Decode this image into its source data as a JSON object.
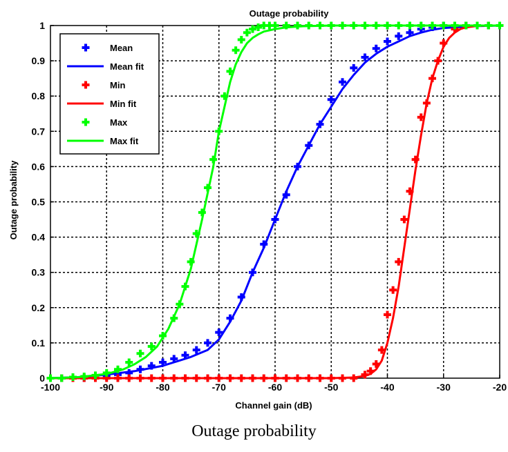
{
  "caption": "Outage probability",
  "chart_data": {
    "type": "line",
    "title": "Outage probability",
    "xlabel": "Channel gain (dB)",
    "ylabel": "Outage probability",
    "xlim": [
      -100,
      -20
    ],
    "ylim": [
      0,
      1
    ],
    "xticks": [
      -100,
      -90,
      -80,
      -70,
      -60,
      -50,
      -40,
      -30,
      -20
    ],
    "yticks": [
      0,
      0.1,
      0.2,
      0.3,
      0.4,
      0.5,
      0.6,
      0.7,
      0.8,
      0.9,
      1
    ],
    "xtick_labels": [
      "-100",
      "-90",
      "-80",
      "-70",
      "-60",
      "-50",
      "-40",
      "-30",
      "-20"
    ],
    "ytick_labels": [
      "0",
      "0.1",
      "0.2",
      "0.3",
      "0.4",
      "0.5",
      "0.6",
      "0.7",
      "0.8",
      "0.9",
      "1"
    ],
    "grid": true,
    "legend_position": "top-left",
    "series": [
      {
        "name": "Mean",
        "kind": "markers",
        "marker": "plus",
        "color": "#0000ff",
        "x": [
          -100,
          -98,
          -96,
          -94,
          -92,
          -90,
          -88,
          -86,
          -84,
          -82,
          -80,
          -78,
          -76,
          -74,
          -72,
          -70,
          -68,
          -66,
          -64,
          -62,
          -60,
          -58,
          -56,
          -54,
          -52,
          -50,
          -48,
          -46,
          -44,
          -42,
          -40,
          -38,
          -36,
          -34,
          -32,
          -30,
          -28,
          -26,
          -24,
          -22,
          -20
        ],
        "y": [
          0,
          0,
          0,
          0,
          0,
          0.005,
          0.01,
          0.015,
          0.025,
          0.035,
          0.045,
          0.055,
          0.065,
          0.08,
          0.1,
          0.13,
          0.17,
          0.23,
          0.3,
          0.38,
          0.45,
          0.52,
          0.6,
          0.66,
          0.72,
          0.79,
          0.84,
          0.88,
          0.91,
          0.935,
          0.955,
          0.97,
          0.98,
          0.99,
          0.995,
          1,
          1,
          1,
          1,
          1,
          1
        ]
      },
      {
        "name": "Mean fit",
        "kind": "line",
        "color": "#0000ff",
        "x": [
          -100,
          -95,
          -90,
          -85,
          -80,
          -75,
          -72,
          -70,
          -68,
          -66,
          -64,
          -62,
          -60,
          -58,
          -56,
          -54,
          -52,
          -50,
          -48,
          -46,
          -44,
          -42,
          -40,
          -38,
          -36,
          -34,
          -32,
          -30,
          -25,
          -20
        ],
        "y": [
          0,
          0.003,
          0.01,
          0.02,
          0.035,
          0.06,
          0.08,
          0.11,
          0.16,
          0.22,
          0.3,
          0.37,
          0.45,
          0.53,
          0.6,
          0.66,
          0.72,
          0.77,
          0.82,
          0.86,
          0.895,
          0.92,
          0.94,
          0.955,
          0.97,
          0.98,
          0.988,
          0.993,
          0.998,
          1
        ]
      },
      {
        "name": "Min",
        "kind": "markers",
        "marker": "plus",
        "color": "#ff0000",
        "x": [
          -100,
          -98,
          -96,
          -94,
          -92,
          -90,
          -88,
          -86,
          -84,
          -82,
          -80,
          -78,
          -76,
          -74,
          -72,
          -70,
          -68,
          -66,
          -64,
          -62,
          -60,
          -58,
          -56,
          -54,
          -52,
          -50,
          -48,
          -46,
          -44,
          -43,
          -42,
          -41,
          -40,
          -39,
          -38,
          -37,
          -36,
          -35,
          -34,
          -33,
          -32,
          -31,
          -30,
          -28,
          -26,
          -24,
          -22,
          -20
        ],
        "y": [
          0,
          0,
          0,
          0,
          0,
          0,
          0,
          0,
          0,
          0,
          0,
          0,
          0,
          0,
          0,
          0,
          0,
          0,
          0,
          0,
          0,
          0,
          0,
          0,
          0,
          0,
          0,
          0,
          0.01,
          0.02,
          0.04,
          0.08,
          0.18,
          0.25,
          0.33,
          0.45,
          0.53,
          0.62,
          0.74,
          0.78,
          0.85,
          0.9,
          0.95,
          0.99,
          1,
          1,
          1,
          1
        ]
      },
      {
        "name": "Min fit",
        "kind": "line",
        "color": "#ff0000",
        "x": [
          -100,
          -50,
          -46,
          -44,
          -43,
          -42,
          -41,
          -40,
          -39,
          -38,
          -37,
          -36,
          -35,
          -34,
          -33,
          -32,
          -31,
          -30,
          -29,
          -28,
          -27,
          -26,
          -24,
          -22,
          -20
        ],
        "y": [
          0,
          0,
          0.002,
          0.006,
          0.012,
          0.025,
          0.05,
          0.1,
          0.17,
          0.26,
          0.37,
          0.48,
          0.59,
          0.69,
          0.78,
          0.85,
          0.9,
          0.94,
          0.965,
          0.98,
          0.99,
          0.995,
          0.999,
          1,
          1
        ]
      },
      {
        "name": "Max",
        "kind": "markers",
        "marker": "plus",
        "color": "#00ff00",
        "x": [
          -100,
          -98,
          -96,
          -94,
          -92,
          -90,
          -88,
          -86,
          -84,
          -82,
          -80,
          -78,
          -77,
          -76,
          -75,
          -74,
          -73,
          -72,
          -71,
          -70,
          -69,
          -68,
          -67,
          -66,
          -65,
          -64,
          -63,
          -62,
          -61,
          -60,
          -58,
          -56,
          -54,
          -52,
          -50,
          -48,
          -46,
          -44,
          -42,
          -40,
          -38,
          -36,
          -34,
          -32,
          -30,
          -28,
          -26,
          -24,
          -22,
          -20
        ],
        "y": [
          0,
          0,
          0.003,
          0.005,
          0.008,
          0.015,
          0.025,
          0.045,
          0.07,
          0.09,
          0.12,
          0.17,
          0.21,
          0.26,
          0.33,
          0.41,
          0.47,
          0.54,
          0.62,
          0.7,
          0.8,
          0.87,
          0.93,
          0.96,
          0.98,
          0.99,
          0.995,
          1,
          1,
          1,
          1,
          1,
          1,
          1,
          1,
          1,
          1,
          1,
          1,
          1,
          1,
          1,
          1,
          1,
          1,
          1,
          1,
          1,
          1,
          1
        ]
      },
      {
        "name": "Max fit",
        "kind": "line",
        "color": "#00ff00",
        "x": [
          -100,
          -95,
          -90,
          -87,
          -85,
          -83,
          -81,
          -79,
          -77,
          -75,
          -73,
          -71,
          -70,
          -69,
          -68,
          -67,
          -66,
          -65,
          -64,
          -63,
          -62,
          -60,
          -58,
          -55,
          -50,
          -40,
          -30,
          -20
        ],
        "y": [
          0,
          0.003,
          0.012,
          0.025,
          0.04,
          0.06,
          0.09,
          0.14,
          0.21,
          0.31,
          0.45,
          0.6,
          0.7,
          0.77,
          0.84,
          0.89,
          0.925,
          0.95,
          0.965,
          0.975,
          0.983,
          0.99,
          0.995,
          0.998,
          1,
          1,
          1,
          1
        ]
      }
    ]
  }
}
